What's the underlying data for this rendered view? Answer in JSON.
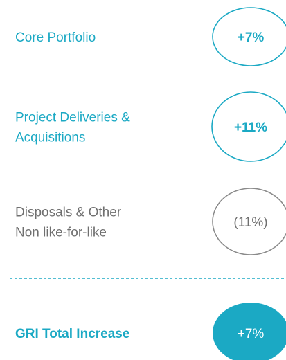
{
  "items": [
    {
      "label": [
        "Core Portfolio"
      ],
      "value": "+7%",
      "style": "outline"
    },
    {
      "label": [
        "Project Deliveries &",
        "Acquisitions"
      ],
      "value": "+11%",
      "style": "outline"
    },
    {
      "label": [
        "Disposals & Other",
        "Non like-for-like"
      ],
      "value": "(11%)",
      "style": "muted"
    },
    {
      "label": [
        "GRI Total Increase"
      ],
      "value": "+7%",
      "style": "total"
    }
  ]
}
